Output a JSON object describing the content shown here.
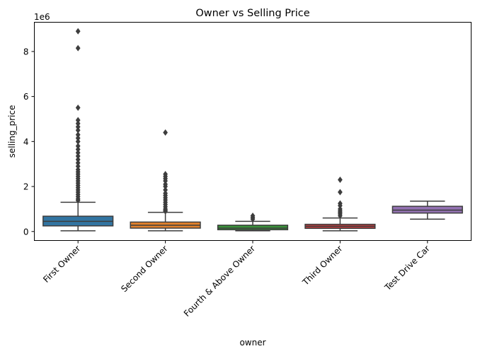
{
  "chart_data": {
    "type": "box",
    "title": "Owner vs Selling Price",
    "xlabel": "owner",
    "ylabel": "selling_price",
    "y_offset_label": "1e6",
    "y_multiplier": 1000000,
    "ylim": [
      -400000,
      9300000
    ],
    "yticks": [
      {
        "value": 0,
        "label": "0"
      },
      {
        "value": 2000000,
        "label": "2"
      },
      {
        "value": 4000000,
        "label": "4"
      },
      {
        "value": 6000000,
        "label": "6"
      },
      {
        "value": 8000000,
        "label": "8"
      }
    ],
    "grid": false,
    "legend": "none",
    "categories": [
      "First Owner",
      "Second Owner",
      "Fourth & Above Owner",
      "Third Owner",
      "Test Drive Car"
    ],
    "boxes": [
      {
        "category": "First Owner",
        "color": "#3274a1",
        "whisker_low": 30000,
        "q1": 250000,
        "median": 450000,
        "q3": 680000,
        "whisker_high": 1300000,
        "outliers": [
          8900000,
          8150000,
          5500000,
          4950000,
          4800000,
          4650000,
          4500000,
          4300000,
          4150000,
          4000000,
          3800000,
          3650000,
          3500000,
          3350000,
          3200000,
          3050000,
          2900000,
          2750000,
          2650000,
          2550000,
          2450000,
          2350000,
          2250000,
          2150000,
          2050000,
          1950000,
          1850000,
          1750000,
          1650000,
          1550000,
          1450000,
          1380000
        ]
      },
      {
        "category": "Second Owner",
        "color": "#e1812c",
        "whisker_low": 30000,
        "q1": 150000,
        "median": 280000,
        "q3": 420000,
        "whisker_high": 850000,
        "outliers": [
          4400000,
          2550000,
          2450000,
          2350000,
          2250000,
          2100000,
          2000000,
          1850000,
          1700000,
          1600000,
          1500000,
          1400000,
          1300000,
          1200000,
          1100000,
          1000000,
          950000,
          900000
        ]
      },
      {
        "category": "Fourth & Above Owner",
        "color": "#3a923a",
        "whisker_low": 30000,
        "q1": 80000,
        "median": 150000,
        "q3": 280000,
        "whisker_high": 450000,
        "outliers": [
          700000,
          620000,
          550000
        ]
      },
      {
        "category": "Third Owner",
        "color": "#c03d3e",
        "whisker_low": 30000,
        "q1": 140000,
        "median": 230000,
        "q3": 320000,
        "whisker_high": 600000,
        "outliers": [
          2300000,
          1750000,
          1250000,
          1150000,
          1000000,
          920000,
          850000,
          780000,
          700000
        ]
      },
      {
        "category": "Test Drive Car",
        "color": "#9372b2",
        "whisker_low": 550000,
        "q1": 820000,
        "median": 950000,
        "q3": 1120000,
        "whisker_high": 1350000,
        "outliers": []
      }
    ]
  }
}
